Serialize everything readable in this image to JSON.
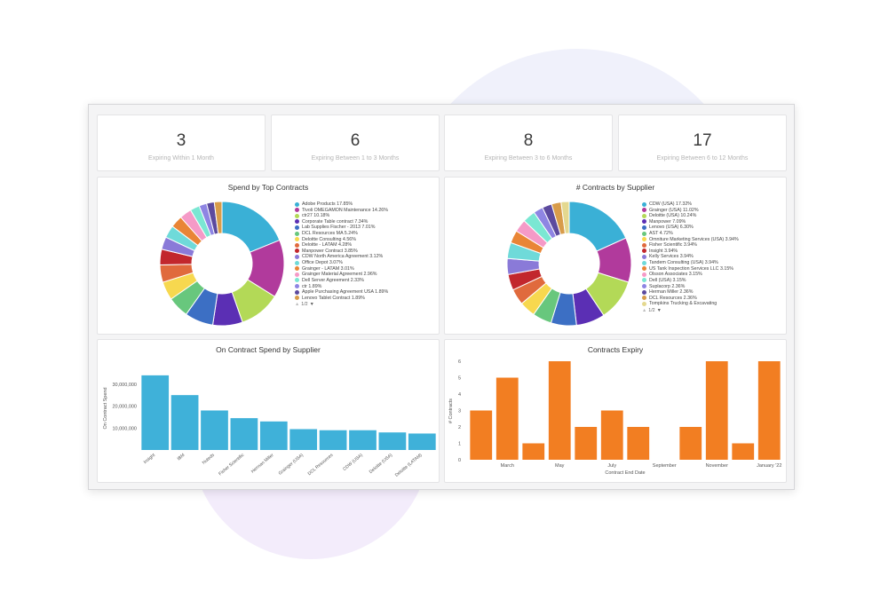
{
  "colors": {
    "bar_blue": "#3fb1d9",
    "bar_orange": "#f27e22",
    "palette": [
      "#3ab0d6",
      "#b13a9c",
      "#b3d957",
      "#5b2fb4",
      "#3c6fc4",
      "#68c77d",
      "#f7d84f",
      "#e06a3d",
      "#c2272d",
      "#8a7ad8",
      "#6fdad9",
      "#e98536",
      "#f59ac7",
      "#7be7d3",
      "#8e85e3",
      "#5c4a9e",
      "#d89c4a",
      "#e4d88f",
      "#f08b5f",
      "#7a4f9a",
      "#c7ea98",
      "#a3d3e6",
      "#e6a3b1",
      "#f1c40f",
      "#e74c3c"
    ]
  },
  "kpis": [
    {
      "value": "3",
      "label": "Expiring Within 1 Month"
    },
    {
      "value": "6",
      "label": "Expiring Between 1 to 3 Months"
    },
    {
      "value": "8",
      "label": "Expiring Between 3 to 6 Months"
    },
    {
      "value": "17",
      "label": "Expiring Between 6 to 12 Months"
    }
  ],
  "pager": "1/2",
  "chart_data": [
    {
      "type": "pie",
      "title": "Spend by Top Contracts",
      "legend_position": "right",
      "slices": [
        {
          "label": "Adobe Products 17.85%",
          "value": 17.85
        },
        {
          "label": "Tivoli OMEGAMON Maintenance 14.26%",
          "value": 14.26
        },
        {
          "label": "ctr27 10.18%",
          "value": 10.18
        },
        {
          "label": "Corporate Table contract 7.34%",
          "value": 7.34
        },
        {
          "label": "Lab Supplies Fischer - 2013 7.01%",
          "value": 7.01
        },
        {
          "label": "DCL Resources MA 5.24%",
          "value": 5.24
        },
        {
          "label": "Deloitte Consulting 4.56%",
          "value": 4.56
        },
        {
          "label": "Deloitte - LATAM 4.28%",
          "value": 4.28
        },
        {
          "label": "Manpower Contract 3.85%",
          "value": 3.85
        },
        {
          "label": "CDW North America Agreement 3.12%",
          "value": 3.12
        },
        {
          "label": "Office Depot 3.07%",
          "value": 3.07
        },
        {
          "label": "Grainger - LATAM 3.01%",
          "value": 3.01
        },
        {
          "label": "Grainger Material Agreement 2.96%",
          "value": 2.96
        },
        {
          "label": "Dell Server Agreement 2.33%",
          "value": 2.33
        },
        {
          "label": "ctr 1.89%",
          "value": 1.89
        },
        {
          "label": "Apple Purchasing Agreement USA 1.89%",
          "value": 1.89
        },
        {
          "label": "Lenovo Tablet Contract 1.89%",
          "value": 1.89
        }
      ]
    },
    {
      "type": "pie",
      "title": "# Contracts by Supplier",
      "legend_position": "right",
      "slices": [
        {
          "label": "CDW (USA) 17.32%",
          "value": 17.32
        },
        {
          "label": "Grainger (USA) 11.02%",
          "value": 11.02
        },
        {
          "label": "Deloitte (USA) 10.24%",
          "value": 10.24
        },
        {
          "label": "Manpower 7.09%",
          "value": 7.09
        },
        {
          "label": "Lenovo (USA) 6.30%",
          "value": 6.3
        },
        {
          "label": "AST 4.72%",
          "value": 4.72
        },
        {
          "label": "Omniture Marketing Services (USA) 3.94%",
          "value": 3.94
        },
        {
          "label": "Fisher Scientific 3.94%",
          "value": 3.94
        },
        {
          "label": "Insight 3.94%",
          "value": 3.94
        },
        {
          "label": "Kelly Services 3.94%",
          "value": 3.94
        },
        {
          "label": "Tandem Consulting (USA) 3.94%",
          "value": 3.94
        },
        {
          "label": "US Tank Inspection Services LLC 3.15%",
          "value": 3.15
        },
        {
          "label": "Olsson Associates 3.15%",
          "value": 3.15
        },
        {
          "label": "Dell (USA) 3.15%",
          "value": 3.15
        },
        {
          "label": "Suplacorp 2.36%",
          "value": 2.36
        },
        {
          "label": "Herman Miller 2.36%",
          "value": 2.36
        },
        {
          "label": "DCL Resources 2.36%",
          "value": 2.36
        },
        {
          "label": "Tompkins Trucking & Excavating",
          "value": 2.0
        }
      ]
    },
    {
      "type": "bar",
      "title": "On Contract Spend by Supplier",
      "xlabel": "",
      "ylabel": "On Contract Spend",
      "ylim": [
        0,
        38000000
      ],
      "yticks": [
        10000000,
        20000000,
        30000000
      ],
      "ytick_labels": [
        "10,000,000",
        "20,000,000",
        "30,000,000"
      ],
      "categories": [
        "Insight",
        "IBM",
        "Nuteds",
        "Fisher Scientific",
        "Herman Miller",
        "Grainger (USA)",
        "DCL Resources",
        "CDW (USA)",
        "Deloitte (USA)",
        "Deloitte (LATAM)"
      ],
      "values": [
        34000000,
        25000000,
        18000000,
        14500000,
        13000000,
        9500000,
        9000000,
        9000000,
        8000000,
        7500000
      ]
    },
    {
      "type": "bar",
      "title": "Contracts Expiry",
      "xlabel": "Contract End Date",
      "ylabel": "# Contracts",
      "ylim": [
        0,
        6
      ],
      "yticks": [
        0,
        1,
        2,
        3,
        4,
        5,
        6
      ],
      "values": [
        3,
        5,
        1,
        6,
        2,
        3,
        2,
        0,
        2,
        6,
        1,
        6
      ],
      "x_tick_labels": [
        "March",
        "May",
        "July",
        "September",
        "November",
        "January '22"
      ],
      "x_tick_positions": [
        1,
        3,
        5,
        7,
        9,
        11
      ]
    }
  ]
}
